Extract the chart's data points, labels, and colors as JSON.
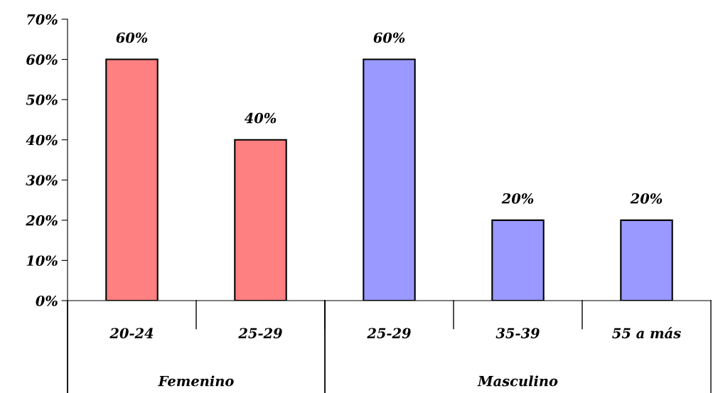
{
  "chart_data": {
    "type": "bar",
    "categories": [
      "20-24",
      "25-29",
      "25-29",
      "35-39",
      "55 a más"
    ],
    "series": [
      {
        "color": "#ff8080",
        "values": [
          60,
          40,
          null,
          null,
          null
        ],
        "value_labels": [
          "60%",
          "40%",
          null,
          null,
          null
        ]
      },
      {
        "color": "#9999ff",
        "values": [
          null,
          null,
          60,
          20,
          20
        ],
        "value_labels": [
          null,
          null,
          "60%",
          "20%",
          "20%"
        ]
      }
    ],
    "ylim": [
      0,
      70
    ],
    "yticks": [
      {
        "value": 0,
        "label": "0%"
      },
      {
        "value": 10,
        "label": "10%"
      },
      {
        "value": 20,
        "label": "20%"
      },
      {
        "value": 30,
        "label": "30%"
      },
      {
        "value": 40,
        "label": "40%"
      },
      {
        "value": 50,
        "label": "50%"
      },
      {
        "value": 60,
        "label": "60%"
      },
      {
        "value": 70,
        "label": "70%"
      }
    ],
    "annotations": [
      "Femenino",
      "Masculino"
    ],
    "grid": false,
    "legend": false
  }
}
